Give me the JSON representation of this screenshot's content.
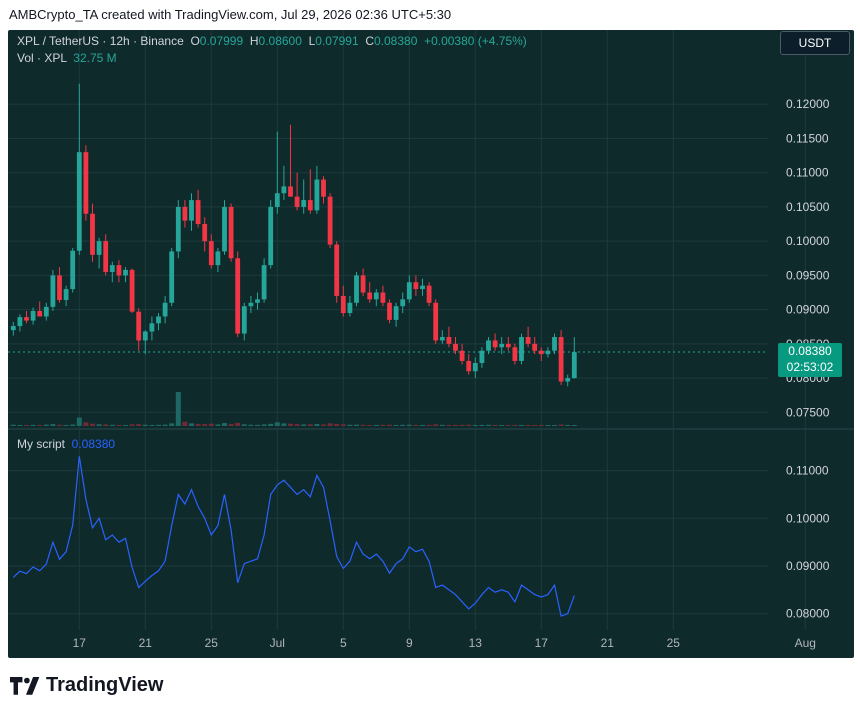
{
  "header": {
    "text": "AMBCrypto_TA created with TradingView.com, Jul 29, 2026 02:36 UTC+5:30"
  },
  "legend": {
    "symbol": "XPL / TetherUS · 12h · Binance",
    "o_label": "O",
    "o_value": "0.07999",
    "h_label": "H",
    "h_value": "0.08600",
    "l_label": "L",
    "l_value": "0.07991",
    "c_label": "C",
    "c_value": "0.08380",
    "change": "+0.00380 (+4.75%)",
    "vol_label": "Vol · XPL",
    "vol_value": "32.75 M"
  },
  "currency_button": "USDT",
  "price_tag": {
    "price": "0.08380",
    "countdown": "02:53:02"
  },
  "indicator": {
    "name": "My script",
    "value": "0.08380"
  },
  "footer": {
    "brand": "TradingView"
  },
  "colors": {
    "panel_bg": "#0f2a2a",
    "up": "#26a69a",
    "down": "#f23645",
    "line": "#2962ff",
    "grid": "#1c3a3e"
  },
  "chart_data": [
    {
      "type": "candlestick",
      "title": "XPL / TetherUS · 12h · Binance",
      "ylim": [
        0.073,
        0.125
      ],
      "y_ticks": [
        "0.12000",
        "0.11500",
        "0.11000",
        "0.10500",
        "0.10000",
        "0.09500",
        "0.09000",
        "0.08500",
        "0.08000",
        "0.07500"
      ],
      "x_ticks": [
        "17",
        "21",
        "25",
        "Jul",
        "5",
        "9",
        "13",
        "17",
        "21",
        "25",
        "Aug"
      ],
      "x_tick_index": [
        10,
        20,
        30,
        40,
        50,
        60,
        70,
        80,
        90,
        100,
        120
      ],
      "grid": true,
      "candles": [
        [
          0.087,
          0.0882,
          0.0862,
          0.0876
        ],
        [
          0.0876,
          0.0893,
          0.0868,
          0.0889
        ],
        [
          0.0889,
          0.0898,
          0.088,
          0.0884
        ],
        [
          0.0884,
          0.0903,
          0.0878,
          0.0898
        ],
        [
          0.0898,
          0.0912,
          0.089,
          0.089
        ],
        [
          0.089,
          0.091,
          0.0884,
          0.0904
        ],
        [
          0.0904,
          0.0958,
          0.0898,
          0.095
        ],
        [
          0.095,
          0.0962,
          0.091,
          0.0914
        ],
        [
          0.0914,
          0.0935,
          0.0905,
          0.093
        ],
        [
          0.093,
          0.099,
          0.0925,
          0.0986
        ],
        [
          0.0986,
          0.123,
          0.098,
          0.113
        ],
        [
          0.113,
          0.114,
          0.103,
          0.104
        ],
        [
          0.104,
          0.1055,
          0.097,
          0.098
        ],
        [
          0.098,
          0.1005,
          0.096,
          0.1
        ],
        [
          0.1,
          0.101,
          0.095,
          0.0955
        ],
        [
          0.0955,
          0.097,
          0.094,
          0.0965
        ],
        [
          0.0965,
          0.0972,
          0.094,
          0.095
        ],
        [
          0.095,
          0.0962,
          0.094,
          0.0958
        ],
        [
          0.0958,
          0.096,
          0.0895,
          0.0897
        ],
        [
          0.0897,
          0.0902,
          0.084,
          0.0855
        ],
        [
          0.0855,
          0.087,
          0.0835,
          0.0868
        ],
        [
          0.0868,
          0.089,
          0.0855,
          0.088
        ],
        [
          0.088,
          0.0895,
          0.087,
          0.089
        ],
        [
          0.089,
          0.092,
          0.088,
          0.091
        ],
        [
          0.091,
          0.099,
          0.0905,
          0.0985
        ],
        [
          0.0985,
          0.106,
          0.0975,
          0.105
        ],
        [
          0.105,
          0.106,
          0.102,
          0.103
        ],
        [
          0.103,
          0.107,
          0.1015,
          0.106
        ],
        [
          0.106,
          0.1075,
          0.102,
          0.1025
        ],
        [
          0.1025,
          0.1035,
          0.0985,
          0.1
        ],
        [
          0.1,
          0.101,
          0.096,
          0.0965
        ],
        [
          0.0965,
          0.099,
          0.0955,
          0.0985
        ],
        [
          0.0985,
          0.106,
          0.098,
          0.105
        ],
        [
          0.105,
          0.1055,
          0.097,
          0.0975
        ],
        [
          0.0975,
          0.0985,
          0.086,
          0.0865
        ],
        [
          0.0865,
          0.091,
          0.0855,
          0.0905
        ],
        [
          0.0905,
          0.092,
          0.0895,
          0.091
        ],
        [
          0.091,
          0.0925,
          0.09,
          0.0915
        ],
        [
          0.0915,
          0.0975,
          0.091,
          0.0965
        ],
        [
          0.0965,
          0.106,
          0.096,
          0.105
        ],
        [
          0.105,
          0.116,
          0.104,
          0.107
        ],
        [
          0.107,
          0.111,
          0.106,
          0.108
        ],
        [
          0.108,
          0.117,
          0.1065,
          0.1065
        ],
        [
          0.1065,
          0.11,
          0.1045,
          0.105
        ],
        [
          0.105,
          0.109,
          0.104,
          0.106
        ],
        [
          0.106,
          0.1105,
          0.104,
          0.1045
        ],
        [
          0.1045,
          0.111,
          0.104,
          0.109
        ],
        [
          0.109,
          0.1095,
          0.1055,
          0.1065
        ],
        [
          0.1065,
          0.107,
          0.099,
          0.0995
        ],
        [
          0.0995,
          0.1,
          0.091,
          0.092
        ],
        [
          0.092,
          0.0935,
          0.089,
          0.0895
        ],
        [
          0.0895,
          0.092,
          0.089,
          0.091
        ],
        [
          0.091,
          0.0955,
          0.0905,
          0.095
        ],
        [
          0.095,
          0.096,
          0.092,
          0.0925
        ],
        [
          0.0925,
          0.094,
          0.091,
          0.0915
        ],
        [
          0.0915,
          0.093,
          0.0905,
          0.0925
        ],
        [
          0.0925,
          0.0935,
          0.0905,
          0.091
        ],
        [
          0.091,
          0.0915,
          0.088,
          0.0885
        ],
        [
          0.0885,
          0.091,
          0.0875,
          0.0905
        ],
        [
          0.0905,
          0.0925,
          0.0895,
          0.0915
        ],
        [
          0.0915,
          0.095,
          0.091,
          0.094
        ],
        [
          0.094,
          0.095,
          0.092,
          0.093
        ],
        [
          0.093,
          0.0945,
          0.092,
          0.0935
        ],
        [
          0.0935,
          0.094,
          0.0905,
          0.091
        ],
        [
          0.091,
          0.0915,
          0.085,
          0.0855
        ],
        [
          0.0855,
          0.087,
          0.085,
          0.086
        ],
        [
          0.086,
          0.0875,
          0.0845,
          0.085
        ],
        [
          0.085,
          0.086,
          0.0835,
          0.084
        ],
        [
          0.084,
          0.085,
          0.082,
          0.0825
        ],
        [
          0.0825,
          0.0835,
          0.0805,
          0.081
        ],
        [
          0.081,
          0.083,
          0.08,
          0.0822
        ],
        [
          0.0822,
          0.0845,
          0.0815,
          0.084
        ],
        [
          0.084,
          0.086,
          0.0835,
          0.0855
        ],
        [
          0.0855,
          0.0865,
          0.084,
          0.0845
        ],
        [
          0.0845,
          0.086,
          0.0835,
          0.085
        ],
        [
          0.085,
          0.086,
          0.084,
          0.0845
        ],
        [
          0.0845,
          0.085,
          0.082,
          0.0825
        ],
        [
          0.0825,
          0.0865,
          0.082,
          0.086
        ],
        [
          0.086,
          0.0875,
          0.0845,
          0.085
        ],
        [
          0.085,
          0.086,
          0.0835,
          0.084
        ],
        [
          0.084,
          0.0845,
          0.0825,
          0.0835
        ],
        [
          0.0835,
          0.0845,
          0.083,
          0.084
        ],
        [
          0.084,
          0.0865,
          0.0835,
          0.086
        ],
        [
          0.086,
          0.087,
          0.079,
          0.0795
        ],
        [
          0.0795,
          0.0805,
          0.0788,
          0.08
        ],
        [
          0.08,
          0.086,
          0.0799,
          0.0838
        ]
      ],
      "volume": [
        1.2,
        1.0,
        0.9,
        1.1,
        1.0,
        1.3,
        1.8,
        1.2,
        1.0,
        1.4,
        8.0,
        3.5,
        2.2,
        1.6,
        1.5,
        1.1,
        1.0,
        0.9,
        1.6,
        1.8,
        1.2,
        1.0,
        1.1,
        1.3,
        2.5,
        32.0,
        4.0,
        2.5,
        2.0,
        1.8,
        2.2,
        1.5,
        2.8,
        2.0,
        3.0,
        1.6,
        1.2,
        1.1,
        1.5,
        2.0,
        3.5,
        2.5,
        2.2,
        1.8,
        1.5,
        1.6,
        1.9,
        1.4,
        2.5,
        2.0,
        1.6,
        1.2,
        1.3,
        1.1,
        1.0,
        1.0,
        1.1,
        1.2,
        1.0,
        1.1,
        1.2,
        1.0,
        1.0,
        1.1,
        1.6,
        1.1,
        1.0,
        1.0,
        1.1,
        1.2,
        1.0,
        1.0,
        1.1,
        1.0,
        0.9,
        0.9,
        1.0,
        1.0,
        0.9,
        0.9,
        0.8,
        0.8,
        0.9,
        1.4,
        1.0,
        0.9
      ]
    },
    {
      "type": "line",
      "series": [
        {
          "name": "My script",
          "values_source": "candle close"
        }
      ],
      "ylim": [
        0.077,
        0.116
      ],
      "y_ticks": [
        "0.11000",
        "0.10000",
        "0.09000",
        "0.08000"
      ],
      "grid": true
    }
  ]
}
